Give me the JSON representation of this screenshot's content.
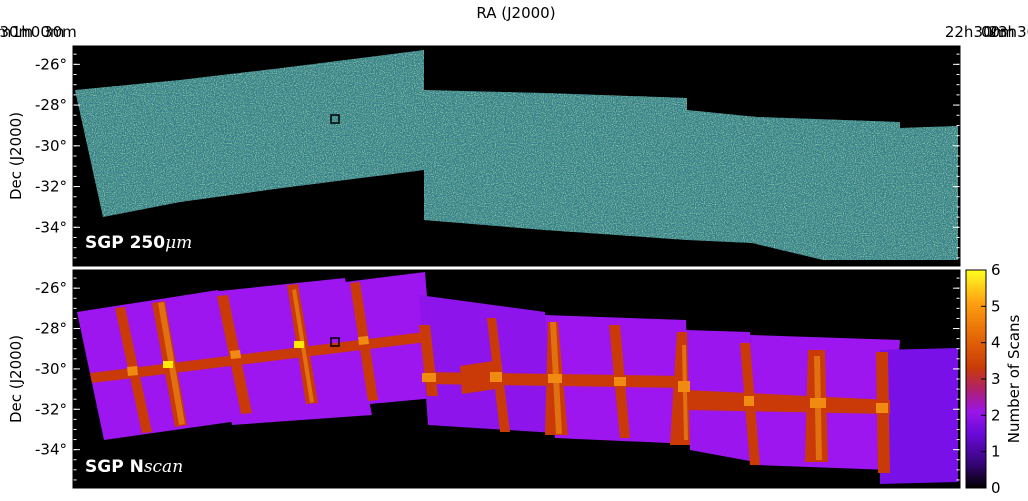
{
  "figure": {
    "top_axis_label": "RA (J2000)",
    "y_axis_label": "Dec (J2000)"
  },
  "chart_data": [
    {
      "type": "heatmap",
      "panel": "top",
      "label_main": "SGP 250",
      "label_unit": "μm",
      "colormap": "viridis",
      "ra_tick_labels": [
        "30m",
        "1h00m",
        "30m",
        "00m",
        "23h30m",
        "00m",
        "22h30m"
      ],
      "ra_ticks_deg": [
        22.5,
        15.0,
        7.5,
        0.0,
        352.5,
        345.0,
        337.5
      ],
      "dec_tick_labels": [
        "-26°",
        "-28°",
        "-30°",
        "-32°",
        "-34°"
      ],
      "dec_ticks_deg": [
        -26,
        -28,
        -30,
        -32,
        -34
      ],
      "ra_range_deg": [
        27.0,
        332.0
      ],
      "dec_range_deg": [
        -25.1,
        -35.9
      ],
      "marked_region": {
        "ra_deg": 12.7,
        "dec_deg": -28.8
      },
      "colors": {
        "background": "#000000",
        "map_base": "#2a7c82",
        "map_dark": "#2f4b7c",
        "map_bright": "#c7e020"
      }
    },
    {
      "type": "heatmap",
      "panel": "bottom",
      "label_main": "SGP N",
      "label_unit": "scan",
      "colormap": "gnuplot",
      "ra_tick_labels": [
        "30m",
        "1h00m",
        "30m",
        "00m",
        "23h30m",
        "00m",
        "22h30m"
      ],
      "dec_tick_labels": [
        "-26°",
        "-28°",
        "-30°",
        "-32°",
        "-34°"
      ],
      "marked_region": {
        "ra_deg": 12.7,
        "dec_deg": -28.8
      },
      "colorbar": {
        "label": "Number of Scans",
        "range": [
          0,
          6
        ],
        "tick_labels": [
          "0",
          "1",
          "2",
          "3",
          "4",
          "5",
          "6"
        ],
        "tick_values": [
          0,
          1,
          2,
          3,
          4,
          5,
          6
        ]
      },
      "colors": {
        "background": "#000000",
        "n2": "#9d15ef",
        "n2_dark": "#7a10e8",
        "n3": "#c93a08",
        "n4": "#f08a10",
        "n5": "#ffea00"
      }
    }
  ]
}
